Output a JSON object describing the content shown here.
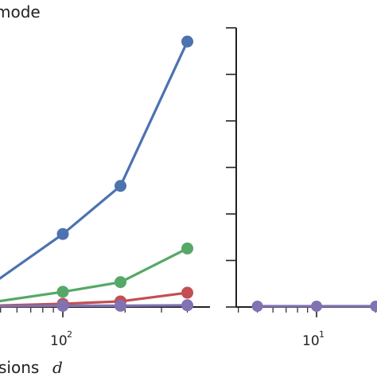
{
  "chart_data": [
    {
      "type": "line",
      "title": "mode",
      "xlabel": "sions",
      "xlabel_var": "d",
      "x_scale": "log",
      "x_tick_labels": [
        {
          "base": "10",
          "exp": "2"
        }
      ],
      "series": [
        {
          "color": "#4c72b0",
          "x": [
            45,
            100,
            190,
            400
          ],
          "y": [
            0.45,
            1.5,
            2.5,
            5.5
          ]
        },
        {
          "color": "#55a868",
          "x": [
            45,
            100,
            190,
            400
          ],
          "y": [
            0.08,
            0.3,
            0.5,
            1.2
          ]
        },
        {
          "color": "#c44e52",
          "x": [
            45,
            100,
            190,
            400
          ],
          "y": [
            0.01,
            0.05,
            0.1,
            0.28
          ]
        },
        {
          "color": "#8172b2",
          "x": [
            45,
            100,
            190,
            400
          ],
          "y": [
            0.0,
            0.01,
            0.01,
            0.02
          ]
        }
      ]
    },
    {
      "type": "line",
      "x_scale": "log",
      "x_tick_labels": [
        {
          "base": "10",
          "exp": "1"
        }
      ],
      "series": [
        {
          "color": "#8172b2",
          "x": [
            5,
            10,
            20
          ],
          "y": [
            0.0,
            0.0,
            0.0
          ]
        }
      ]
    }
  ]
}
